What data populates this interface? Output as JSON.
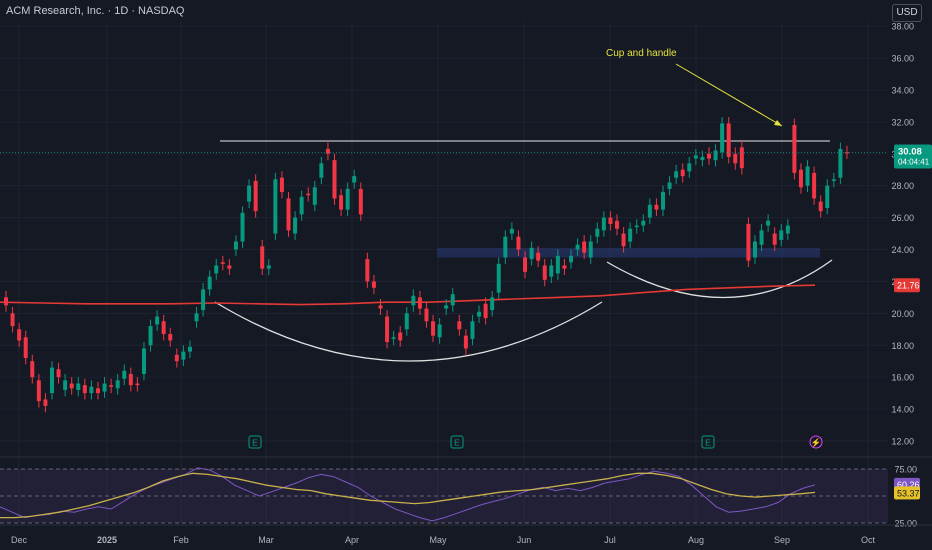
{
  "header": {
    "symbol": "ACM Research, Inc. · 1D · NASDAQ",
    "currency": "USD"
  },
  "annotation": {
    "text": "Cup and handle",
    "color": "#e4e43c"
  },
  "price_tag": {
    "price": "30.08",
    "countdown": "04:04:41",
    "color": "#089981"
  },
  "ma_tag": {
    "value": "21.76",
    "color": "#e53935"
  },
  "rsi_tags": {
    "rsi": "60.26",
    "rsi_ma": "53.37"
  },
  "events": [
    "E",
    "E",
    "E",
    "⚡"
  ],
  "chart_data": [
    {
      "type": "candlestick",
      "y_axis": {
        "labels": [
          "38.00",
          "36.00",
          "34.00",
          "32.00",
          "30.00",
          "28.00",
          "26.00",
          "24.00",
          "22.00",
          "20.00",
          "18.00",
          "16.00",
          "14.00",
          "12.00"
        ],
        "range": [
          11,
          38.5
        ]
      },
      "x_axis": {
        "labels": [
          "Dec",
          "2025",
          "Feb",
          "Mar",
          "Apr",
          "May",
          "Jun",
          "Jul",
          "Aug",
          "Sep",
          "Oct"
        ]
      },
      "series": [
        {
          "color": "#e53935",
          "values": [
            20.7,
            20.65,
            20.6,
            20.6,
            20.6,
            20.65,
            20.6,
            20.55,
            20.6,
            20.7,
            20.7,
            20.8,
            20.9,
            21.0,
            21.1,
            21.3,
            21.5,
            21.6,
            21.7,
            21.76
          ]
        }
      ],
      "resistance_level": 30.8,
      "support_zone": [
        23.5,
        24.1
      ],
      "candles": [
        [
          21.0,
          20.5
        ],
        [
          20.0,
          19.2
        ],
        [
          19.0,
          18.3
        ],
        [
          18.5,
          17.2
        ],
        [
          17.0,
          16.0
        ],
        [
          15.8,
          14.5
        ],
        [
          14.6,
          14.2
        ],
        [
          15.0,
          16.6
        ],
        [
          16.5,
          16.0
        ],
        [
          15.2,
          15.8
        ],
        [
          15.6,
          15.3
        ],
        [
          15.2,
          15.6
        ],
        [
          15.5,
          15.0
        ],
        [
          15.0,
          15.4
        ],
        [
          15.3,
          15.0
        ],
        [
          15.1,
          15.6
        ],
        [
          15.5,
          15.4
        ],
        [
          15.3,
          15.8
        ],
        [
          15.9,
          16.4
        ],
        [
          16.2,
          15.5
        ],
        [
          15.6,
          15.5
        ],
        [
          16.2,
          17.8
        ],
        [
          18.0,
          19.2
        ],
        [
          19.3,
          19.8
        ],
        [
          19.5,
          18.7
        ],
        [
          18.7,
          18.3
        ],
        [
          17.4,
          17.0
        ],
        [
          17.1,
          17.6
        ],
        [
          17.6,
          17.9
        ],
        [
          19.5,
          20.0
        ],
        [
          20.2,
          21.5
        ],
        [
          21.5,
          22.3
        ],
        [
          22.5,
          23.0
        ],
        [
          23.2,
          23.1
        ],
        [
          23.0,
          22.8
        ],
        [
          24.0,
          24.5
        ],
        [
          24.5,
          26.3
        ],
        [
          27.0,
          28.0
        ],
        [
          28.3,
          26.4
        ],
        [
          24.2,
          22.8
        ],
        [
          22.8,
          23.0
        ],
        [
          25.0,
          28.4
        ],
        [
          28.5,
          27.6
        ],
        [
          27.2,
          25.2
        ],
        [
          25.0,
          26.0
        ],
        [
          26.2,
          27.3
        ],
        [
          27.5,
          27.4
        ],
        [
          26.8,
          27.9
        ],
        [
          28.5,
          29.4
        ],
        [
          30.3,
          30.0
        ],
        [
          29.6,
          27.2
        ],
        [
          27.4,
          26.5
        ],
        [
          26.5,
          27.8
        ],
        [
          28.2,
          28.6
        ],
        [
          27.8,
          26.2
        ],
        [
          23.4,
          22.0
        ],
        [
          22.0,
          21.6
        ],
        [
          20.5,
          20.3
        ],
        [
          19.8,
          18.2
        ],
        [
          18.4,
          18.5
        ],
        [
          18.8,
          18.3
        ],
        [
          19.0,
          20.0
        ],
        [
          20.5,
          21.1
        ],
        [
          21.0,
          20.3
        ],
        [
          20.3,
          19.5
        ],
        [
          19.5,
          18.6
        ],
        [
          18.5,
          19.3
        ],
        [
          20.3,
          20.5
        ],
        [
          20.5,
          21.2
        ],
        [
          19.5,
          19.0
        ],
        [
          18.6,
          17.8
        ],
        [
          18.4,
          19.5
        ],
        [
          19.8,
          20.1
        ],
        [
          20.6,
          19.7
        ],
        [
          20.2,
          21.0
        ],
        [
          21.3,
          23.1
        ],
        [
          23.5,
          24.8
        ],
        [
          25.0,
          25.3
        ],
        [
          24.8,
          24.0
        ],
        [
          23.5,
          22.6
        ],
        [
          23.4,
          24.1
        ],
        [
          23.8,
          23.3
        ],
        [
          23.0,
          22.1
        ],
        [
          22.3,
          23.0
        ],
        [
          22.5,
          23.6
        ],
        [
          23.0,
          22.8
        ],
        [
          23.2,
          23.6
        ],
        [
          24.0,
          24.3
        ],
        [
          24.5,
          23.8
        ],
        [
          23.5,
          24.5
        ],
        [
          24.8,
          25.3
        ],
        [
          25.2,
          26.0
        ],
        [
          26.0,
          25.6
        ],
        [
          25.8,
          25.3
        ],
        [
          25.0,
          24.2
        ],
        [
          24.5,
          25.3
        ],
        [
          25.4,
          25.5
        ],
        [
          25.5,
          25.8
        ],
        [
          26.0,
          26.8
        ],
        [
          26.8,
          26.5
        ],
        [
          26.5,
          27.6
        ],
        [
          27.8,
          28.2
        ],
        [
          28.5,
          28.9
        ],
        [
          29.0,
          28.6
        ],
        [
          28.9,
          29.4
        ],
        [
          29.7,
          29.9
        ],
        [
          29.6,
          29.8
        ],
        [
          30.0,
          29.7
        ],
        [
          29.6,
          30.2
        ],
        [
          30.1,
          31.9
        ],
        [
          31.9,
          29.8
        ],
        [
          30.0,
          29.4
        ],
        [
          30.4,
          29.1
        ],
        [
          25.6,
          23.3
        ],
        [
          23.5,
          24.5
        ],
        [
          24.3,
          25.2
        ],
        [
          25.5,
          25.8
        ],
        [
          25.0,
          24.3
        ],
        [
          24.6,
          25.2
        ],
        [
          25.0,
          25.5
        ],
        [
          31.8,
          28.8
        ],
        [
          29.0,
          27.9
        ],
        [
          28.0,
          29.2
        ],
        [
          28.8,
          27.2
        ],
        [
          27.0,
          26.4
        ],
        [
          26.6,
          28.0
        ],
        [
          28.3,
          28.4
        ],
        [
          28.5,
          30.3
        ],
        [
          30.1,
          30.08
        ]
      ]
    },
    {
      "type": "line",
      "y_axis": {
        "labels": [
          "75.00",
          "50.00",
          "25.00"
        ],
        "range": [
          20,
          80
        ]
      },
      "series": [
        {
          "name": "RSI",
          "color": "#7e57c2",
          "values": [
            40,
            35,
            30,
            32,
            33,
            36,
            35,
            38,
            40,
            38,
            45,
            52,
            58,
            62,
            66,
            70,
            76,
            74,
            68,
            60,
            55,
            50,
            54,
            58,
            62,
            67,
            70,
            68,
            63,
            58,
            50,
            44,
            38,
            34,
            30,
            27,
            30,
            34,
            38,
            42,
            45,
            48,
            52,
            56,
            58,
            55,
            57,
            55,
            58,
            62,
            64,
            66,
            70,
            73,
            71,
            68,
            60,
            50,
            40,
            35,
            36,
            38,
            40,
            44,
            52,
            57,
            60.26
          ]
        },
        {
          "name": "RSI MA",
          "color": "#c9b24a",
          "values": [
            30,
            30,
            31,
            33,
            35,
            38,
            41,
            45,
            49,
            53,
            58,
            64,
            68,
            71,
            70,
            68,
            66,
            63,
            60,
            58,
            56,
            55,
            52,
            50,
            48,
            46,
            45,
            44,
            43,
            44,
            46,
            48,
            50,
            52,
            54,
            55,
            56,
            58,
            60,
            62,
            64,
            66,
            69,
            71,
            71,
            69,
            66,
            61,
            56,
            52,
            50,
            49,
            50,
            51,
            52,
            53.37
          ]
        }
      ]
    }
  ]
}
